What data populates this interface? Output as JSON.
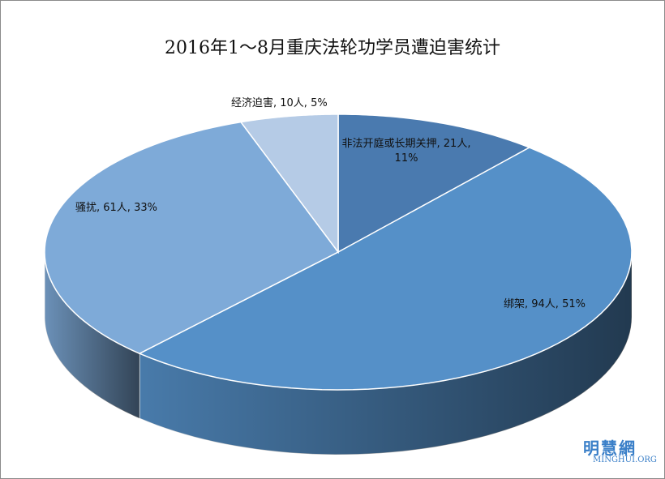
{
  "chart_data": {
    "type": "pie3d",
    "title": "2016年1～8月重庆法轮功学员遭迫害统计",
    "labels": [
      "非法开庭或长期关押, 21人, 11%",
      "绑架, 94人, 51%",
      "骚扰, 61人, 33%",
      "经济迫害, 10人, 5%"
    ],
    "values": [
      21,
      94,
      61,
      10
    ],
    "colors": [
      "#4a7aaf",
      "#5590c8",
      "#7eaad8",
      "#b5cbe6"
    ],
    "logo": "明慧網",
    "logo_url": "MINGHUI.ORG"
  }
}
